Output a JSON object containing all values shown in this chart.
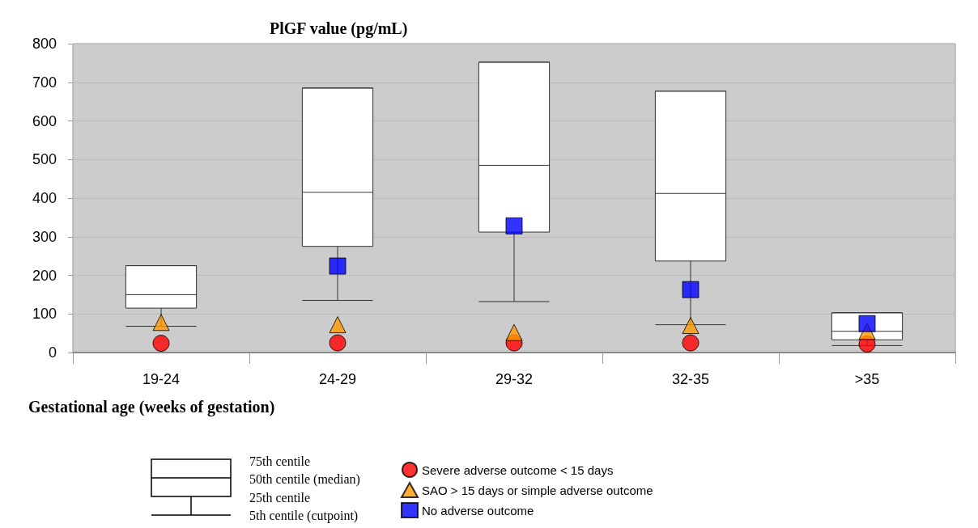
{
  "chart_data": {
    "type": "box",
    "ylabel": "PlGF value (pg/mL)",
    "xlabel": "Gestational age (weeks of gestation)",
    "categories": [
      "19-24",
      "24-29",
      "29-32",
      "32-35",
      ">35"
    ],
    "boxes": [
      {
        "low": 68,
        "q1": 115,
        "median": 150,
        "q3": 225,
        "high": 225
      },
      {
        "low": 135,
        "q1": 275,
        "median": 415,
        "q3": 685,
        "high": 685
      },
      {
        "low": 132,
        "q1": 312,
        "median": 485,
        "q3": 752,
        "high": 752
      },
      {
        "low": 72,
        "q1": 237,
        "median": 412,
        "q3": 677,
        "high": 677
      },
      {
        "low": 18,
        "q1": 33,
        "median": 55,
        "q3": 103,
        "high": 103
      }
    ],
    "series": [
      {
        "name": "Severe adverse outcome < 15 days",
        "type": "scatter",
        "marker": "circle",
        "color": "#ff0000",
        "x": [
          "19-24",
          "24-29",
          "29-32",
          "32-35",
          ">35"
        ],
        "values": [
          24,
          25,
          25,
          25,
          22
        ]
      },
      {
        "name": "SAO > 15 days or simple adverse outcome",
        "type": "scatter",
        "marker": "triangle",
        "color": "#ff9900",
        "x": [
          "19-24",
          "24-29",
          "29-32",
          "32-35",
          ">35"
        ],
        "values": [
          78,
          72,
          52,
          70,
          55
        ]
      },
      {
        "name": "No adverse outcome",
        "type": "scatter",
        "marker": "square",
        "color": "#0000ff",
        "x": [
          "19-24",
          "24-29",
          "29-32",
          "32-35",
          ">35"
        ],
        "values": [
          null,
          224,
          328,
          163,
          75
        ]
      }
    ],
    "ylim": [
      0,
      800
    ],
    "yticks": [
      0,
      100,
      200,
      300,
      400,
      500,
      600,
      700,
      800
    ],
    "grid": "y",
    "legend": "bottom",
    "annotations": [
      "75th centile",
      "50th centile (median)",
      "25th centile",
      "5th centile (cutpoint)"
    ]
  }
}
